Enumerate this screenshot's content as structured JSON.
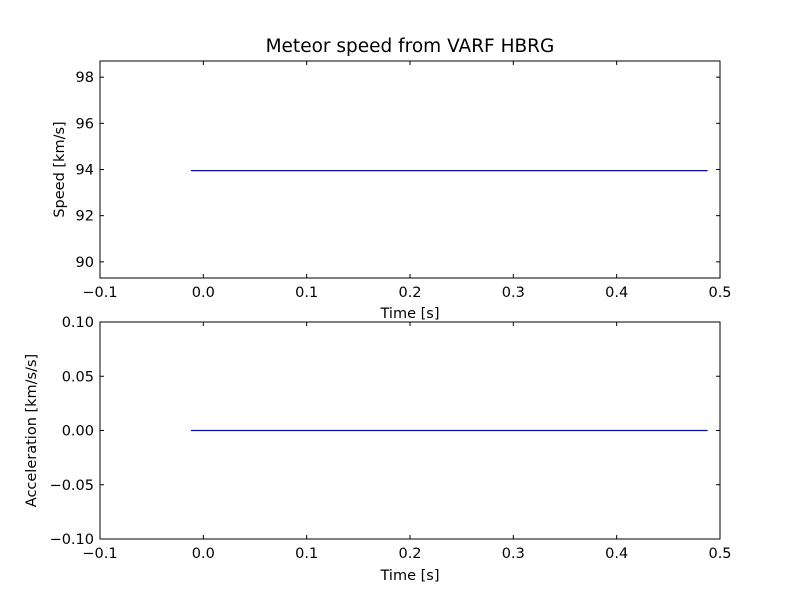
{
  "chart_data": [
    {
      "type": "line",
      "title": "Meteor speed from  VARF HBRG",
      "xlabel": "Time [s]",
      "ylabel": "Speed [km/s]",
      "xlim": [
        -0.1,
        0.5
      ],
      "ylim": [
        89.3,
        98.7
      ],
      "xticks": [
        -0.1,
        0.0,
        0.1,
        0.2,
        0.3,
        0.4,
        0.5
      ],
      "xtick_labels": [
        "−0.1",
        "0.0",
        "0.1",
        "0.2",
        "0.3",
        "0.4",
        "0.5"
      ],
      "yticks": [
        90,
        92,
        94,
        96,
        98
      ],
      "ytick_labels": [
        "90",
        "92",
        "94",
        "96",
        "98"
      ],
      "grid": false,
      "series": [
        {
          "color": "#0000ff",
          "x": [
            -0.012,
            0.488
          ],
          "y": [
            93.95,
            93.95
          ]
        }
      ]
    },
    {
      "type": "line",
      "title": "",
      "xlabel": "Time [s]",
      "ylabel": "Acceleration [km/s/s]",
      "xlim": [
        -0.1,
        0.5
      ],
      "ylim": [
        -0.1,
        0.1
      ],
      "xticks": [
        -0.1,
        0.0,
        0.1,
        0.2,
        0.3,
        0.4,
        0.5
      ],
      "xtick_labels": [
        "−0.1",
        "0.0",
        "0.1",
        "0.2",
        "0.3",
        "0.4",
        "0.5"
      ],
      "yticks": [
        -0.1,
        -0.05,
        0.0,
        0.05,
        0.1
      ],
      "ytick_labels": [
        "−0.10",
        "−0.05",
        "0.00",
        "0.05",
        "0.10"
      ],
      "grid": false,
      "series": [
        {
          "color": "#0000ff",
          "x": [
            -0.012,
            0.488
          ],
          "y": [
            0.0,
            0.0
          ]
        }
      ]
    }
  ]
}
